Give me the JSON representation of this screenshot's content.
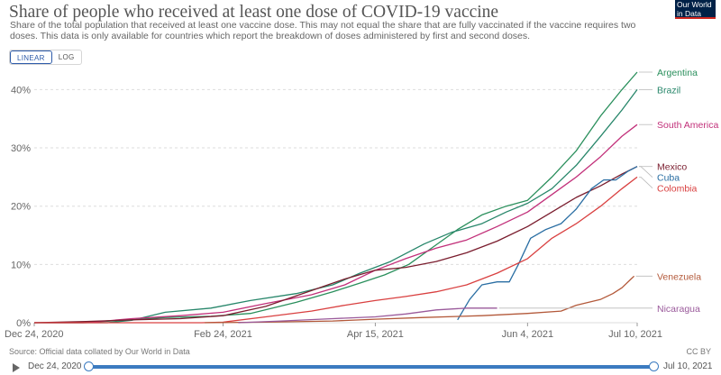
{
  "header": {
    "title": "Share of people who received at least one dose of COVID-19 vaccine",
    "subtitle": "Share of the total population that received at least one vaccine dose. This may not equal the share that are fully vaccinated if the vaccine requires two doses. This data is only available for countries which report the breakdown of doses administered by first and second doses.",
    "logo": "Our World in Data"
  },
  "toggle": {
    "linear_label": "LINEAR",
    "log_label": "LOG",
    "selected": "LINEAR"
  },
  "footer": {
    "source": "Source: Official data collated by Our World in Data",
    "license": "CC BY"
  },
  "timeline": {
    "start": "Dec 24, 2020",
    "end": "Jul 10, 2021"
  },
  "colors": {
    "background": "#ffffff",
    "grid": "#dddddd",
    "timeline_accent": "#3b7bc0"
  },
  "chart_data": {
    "type": "line",
    "title": "Share of people who received at least one dose of COVID-19 vaccine",
    "xlabel": "",
    "ylabel": "",
    "x_range": [
      "2020-12-24",
      "2021-07-10"
    ],
    "ylim": [
      0,
      43
    ],
    "y_ticks": [
      0,
      10,
      20,
      30,
      40
    ],
    "y_tick_labels": [
      "0%",
      "10%",
      "20%",
      "30%",
      "40%"
    ],
    "x_ticks": [
      "2020-12-24",
      "2021-02-24",
      "2021-04-15",
      "2021-06-04",
      "2021-07-10"
    ],
    "x_tick_labels": [
      "Dec 24, 2020",
      "Feb 24, 2021",
      "Apr 15, 2021",
      "Jun 4, 2021",
      "Jul 10, 2021"
    ],
    "grid": "horizontal dashed",
    "legend": "right, labels at line ends",
    "series": [
      {
        "name": "Argentina",
        "color": "#2a8f5c",
        "points": [
          [
            "2020-12-24",
            0
          ],
          [
            "2021-01-09",
            0
          ],
          [
            "2021-01-22",
            0.4
          ],
          [
            "2021-02-05",
            0.9
          ],
          [
            "2021-02-20",
            1.1
          ],
          [
            "2021-03-05",
            1.6
          ],
          [
            "2021-03-20",
            3.5
          ],
          [
            "2021-04-01",
            5.3
          ],
          [
            "2021-04-10",
            6.8
          ],
          [
            "2021-04-18",
            8.2
          ],
          [
            "2021-04-26",
            10.0
          ],
          [
            "2021-05-04",
            13.0
          ],
          [
            "2021-05-12",
            16.0
          ],
          [
            "2021-05-20",
            18.5
          ],
          [
            "2021-05-28",
            20.0
          ],
          [
            "2021-06-04",
            21.0
          ],
          [
            "2021-06-12",
            25.0
          ],
          [
            "2021-06-20",
            29.5
          ],
          [
            "2021-06-28",
            35.5
          ],
          [
            "2021-07-05",
            40.0
          ],
          [
            "2021-07-10",
            43.0
          ]
        ]
      },
      {
        "name": "Brazil",
        "color": "#27866a",
        "points": [
          [
            "2020-12-24",
            0
          ],
          [
            "2021-01-17",
            0
          ],
          [
            "2021-01-25",
            0.4
          ],
          [
            "2021-02-05",
            1.8
          ],
          [
            "2021-02-20",
            2.5
          ],
          [
            "2021-03-05",
            3.8
          ],
          [
            "2021-03-20",
            5.0
          ],
          [
            "2021-04-01",
            6.5
          ],
          [
            "2021-04-10",
            8.5
          ],
          [
            "2021-04-20",
            10.5
          ],
          [
            "2021-05-01",
            13.5
          ],
          [
            "2021-05-10",
            15.5
          ],
          [
            "2021-05-20",
            17.0
          ],
          [
            "2021-05-28",
            19.0
          ],
          [
            "2021-06-04",
            20.5
          ],
          [
            "2021-06-12",
            23.0
          ],
          [
            "2021-06-20",
            27.0
          ],
          [
            "2021-06-28",
            32.0
          ],
          [
            "2021-07-05",
            36.5
          ],
          [
            "2021-07-10",
            40.0
          ]
        ]
      },
      {
        "name": "South America",
        "color": "#c2307a",
        "points": [
          [
            "2020-12-24",
            0
          ],
          [
            "2021-01-10",
            0
          ],
          [
            "2021-01-25",
            0.7
          ],
          [
            "2021-02-10",
            1.2
          ],
          [
            "2021-02-24",
            1.8
          ],
          [
            "2021-03-10",
            3.3
          ],
          [
            "2021-03-25",
            4.8
          ],
          [
            "2021-04-05",
            6.5
          ],
          [
            "2021-04-15",
            9.0
          ],
          [
            "2021-04-25",
            11.0
          ],
          [
            "2021-05-05",
            12.8
          ],
          [
            "2021-05-15",
            14.2
          ],
          [
            "2021-05-25",
            16.5
          ],
          [
            "2021-06-04",
            19.0
          ],
          [
            "2021-06-12",
            22.0
          ],
          [
            "2021-06-20",
            25.0
          ],
          [
            "2021-06-28",
            28.5
          ],
          [
            "2021-07-05",
            32.0
          ],
          [
            "2021-07-10",
            34.0
          ]
        ]
      },
      {
        "name": "Mexico",
        "color": "#7a1d2e",
        "points": [
          [
            "2020-12-24",
            0
          ],
          [
            "2021-01-10",
            0.2
          ],
          [
            "2021-01-25",
            0.5
          ],
          [
            "2021-02-10",
            0.7
          ],
          [
            "2021-02-24",
            1.2
          ],
          [
            "2021-03-10",
            2.8
          ],
          [
            "2021-03-25",
            5.5
          ],
          [
            "2021-04-05",
            7.5
          ],
          [
            "2021-04-15",
            9.0
          ],
          [
            "2021-04-25",
            9.5
          ],
          [
            "2021-05-05",
            10.5
          ],
          [
            "2021-05-15",
            12.0
          ],
          [
            "2021-05-25",
            14.0
          ],
          [
            "2021-06-04",
            16.5
          ],
          [
            "2021-06-12",
            19.0
          ],
          [
            "2021-06-20",
            21.5
          ],
          [
            "2021-06-28",
            23.5
          ],
          [
            "2021-07-05",
            25.5
          ],
          [
            "2021-07-10",
            26.8
          ]
        ]
      },
      {
        "name": "Cuba",
        "color": "#2a6ea3",
        "points": [
          [
            "2021-05-12",
            0.5
          ],
          [
            "2021-05-16",
            4.0
          ],
          [
            "2021-05-20",
            6.5
          ],
          [
            "2021-05-25",
            7.0
          ],
          [
            "2021-05-29",
            7.0
          ],
          [
            "2021-06-01",
            10.0
          ],
          [
            "2021-06-05",
            14.5
          ],
          [
            "2021-06-10",
            16.0
          ],
          [
            "2021-06-15",
            17.0
          ],
          [
            "2021-06-20",
            19.5
          ],
          [
            "2021-06-25",
            23.0
          ],
          [
            "2021-06-29",
            24.5
          ],
          [
            "2021-07-03",
            24.5
          ],
          [
            "2021-07-07",
            26.0
          ],
          [
            "2021-07-10",
            26.8
          ]
        ]
      },
      {
        "name": "Colombia",
        "color": "#d94040",
        "points": [
          [
            "2020-12-24",
            0
          ],
          [
            "2021-02-17",
            0
          ],
          [
            "2021-02-24",
            0.1
          ],
          [
            "2021-03-10",
            1.0
          ],
          [
            "2021-03-25",
            2.0
          ],
          [
            "2021-04-05",
            3.0
          ],
          [
            "2021-04-15",
            3.8
          ],
          [
            "2021-04-25",
            4.5
          ],
          [
            "2021-05-05",
            5.3
          ],
          [
            "2021-05-15",
            6.5
          ],
          [
            "2021-05-25",
            8.5
          ],
          [
            "2021-06-04",
            11.0
          ],
          [
            "2021-06-12",
            14.5
          ],
          [
            "2021-06-20",
            17.0
          ],
          [
            "2021-06-28",
            20.0
          ],
          [
            "2021-07-05",
            23.0
          ],
          [
            "2021-07-10",
            25.0
          ]
        ]
      },
      {
        "name": "Venezuela",
        "color": "#b3593a",
        "points": [
          [
            "2021-02-18",
            0
          ],
          [
            "2021-03-10",
            0.1
          ],
          [
            "2021-04-01",
            0.3
          ],
          [
            "2021-04-15",
            0.6
          ],
          [
            "2021-05-01",
            0.9
          ],
          [
            "2021-05-20",
            1.2
          ],
          [
            "2021-06-04",
            1.6
          ],
          [
            "2021-06-15",
            2.0
          ],
          [
            "2021-06-20",
            3.0
          ],
          [
            "2021-06-28",
            4.0
          ],
          [
            "2021-07-02",
            5.0
          ],
          [
            "2021-07-05",
            6.0
          ],
          [
            "2021-07-08",
            7.5
          ],
          [
            "2021-07-09",
            8.0
          ]
        ]
      },
      {
        "name": "Nicaragua",
        "color": "#9a5a9b",
        "points": [
          [
            "2021-03-01",
            0
          ],
          [
            "2021-03-15",
            0.3
          ],
          [
            "2021-04-01",
            0.7
          ],
          [
            "2021-04-15",
            1.0
          ],
          [
            "2021-04-25",
            1.5
          ],
          [
            "2021-05-05",
            2.2
          ],
          [
            "2021-05-15",
            2.5
          ],
          [
            "2021-05-25",
            2.5
          ]
        ]
      }
    ]
  }
}
